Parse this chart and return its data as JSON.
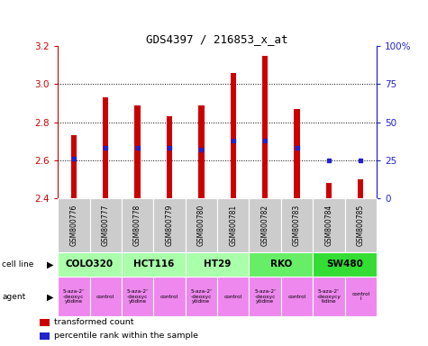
{
  "title": "GDS4397 / 216853_x_at",
  "samples": [
    "GSM800776",
    "GSM800777",
    "GSM800778",
    "GSM800779",
    "GSM800780",
    "GSM800781",
    "GSM800782",
    "GSM800783",
    "GSM800784",
    "GSM800785"
  ],
  "transformed_counts": [
    2.73,
    2.93,
    2.89,
    2.83,
    2.89,
    3.06,
    3.15,
    2.87,
    2.48,
    2.5
  ],
  "percentile_ranks": [
    26,
    33,
    33,
    33,
    32,
    38,
    38,
    33,
    25,
    25
  ],
  "bar_bottom": 2.4,
  "ylim": [
    2.4,
    3.2
  ],
  "y2lim": [
    0,
    100
  ],
  "yticks_left": [
    2.4,
    2.6,
    2.8,
    3.0,
    3.2
  ],
  "yticks_right": [
    0,
    25,
    50,
    75,
    100
  ],
  "ytick_labels_right": [
    "0",
    "25",
    "50",
    "75",
    "100%"
  ],
  "bar_color": "#cc0000",
  "dot_color": "#2222cc",
  "cell_lines": [
    {
      "name": "COLO320",
      "start": 0,
      "end": 2,
      "color": "#aaffaa"
    },
    {
      "name": "HCT116",
      "start": 2,
      "end": 4,
      "color": "#aaffaa"
    },
    {
      "name": "HT29",
      "start": 4,
      "end": 6,
      "color": "#aaffaa"
    },
    {
      "name": "RKO",
      "start": 6,
      "end": 8,
      "color": "#66ee66"
    },
    {
      "name": "SW480",
      "start": 8,
      "end": 10,
      "color": "#33dd33"
    }
  ],
  "agents": [
    {
      "name": "5-aza-2'\n-deoxyc\nytidine",
      "start": 0,
      "end": 1
    },
    {
      "name": "control",
      "start": 1,
      "end": 2
    },
    {
      "name": "5-aza-2'\n-deoxyc\nytidine",
      "start": 2,
      "end": 3
    },
    {
      "name": "control",
      "start": 3,
      "end": 4
    },
    {
      "name": "5-aza-2'\n-deoxyc\nytidine",
      "start": 4,
      "end": 5
    },
    {
      "name": "control",
      "start": 5,
      "end": 6
    },
    {
      "name": "5-aza-2'\n-deoxyc\nytidine",
      "start": 6,
      "end": 7
    },
    {
      "name": "control",
      "start": 7,
      "end": 8
    },
    {
      "name": "5-aza-2'\n-deoxycy\ntidine",
      "start": 8,
      "end": 9
    },
    {
      "name": "control\nl",
      "start": 9,
      "end": 10
    }
  ],
  "agent_color_drug": "#ee88ee",
  "agent_color_control": "#ee88ee",
  "bar_width": 0.18,
  "grid_color": "#000000",
  "axis_color_left": "#cc0000",
  "axis_color_right": "#2222cc",
  "sample_box_color": "#cccccc",
  "legend_items": [
    {
      "label": "transformed count",
      "color": "#cc0000"
    },
    {
      "label": "percentile rank within the sample",
      "color": "#2222cc"
    }
  ]
}
